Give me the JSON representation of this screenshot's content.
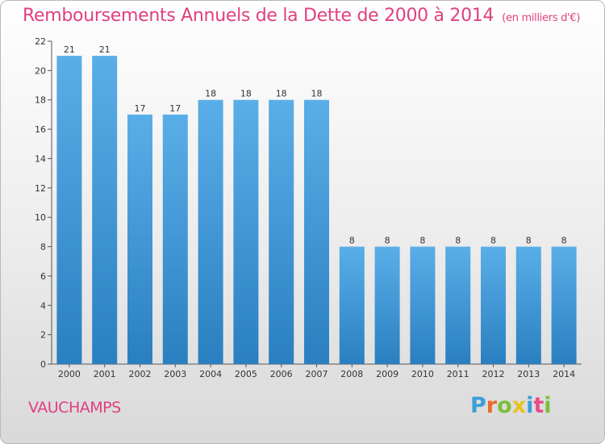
{
  "chart_data": {
    "type": "bar",
    "title": "Remboursements Annuels de la Dette de 2000 à 2014",
    "subtitle": "(en milliers d'€)",
    "categories": [
      "2000",
      "2001",
      "2002",
      "2003",
      "2004",
      "2005",
      "2006",
      "2007",
      "2008",
      "2009",
      "2010",
      "2011",
      "2012",
      "2013",
      "2014"
    ],
    "values": [
      21,
      21,
      17,
      17,
      18,
      18,
      18,
      18,
      8,
      8,
      8,
      8,
      8,
      8,
      8
    ],
    "ylim": [
      0,
      22
    ],
    "yticks": [
      0,
      2,
      4,
      6,
      8,
      10,
      12,
      14,
      16,
      18,
      20,
      22
    ],
    "xlabel": "",
    "ylabel": "",
    "grid": false,
    "bar_color_top": "#5aaee8",
    "bar_color_bottom": "#2a7fc0"
  },
  "commune": "VAUCHAMPS",
  "logo": {
    "letters": [
      "P",
      "r",
      "o",
      "x",
      "i",
      "t",
      "i"
    ],
    "colors": [
      "#3a9fd8",
      "#e96a2b",
      "#7cbf3a",
      "#e8c21e",
      "#3a9fd8",
      "#e84a8a",
      "#7cbf3a"
    ]
  },
  "colors": {
    "title": "#e0407f",
    "axis": "#555555"
  }
}
